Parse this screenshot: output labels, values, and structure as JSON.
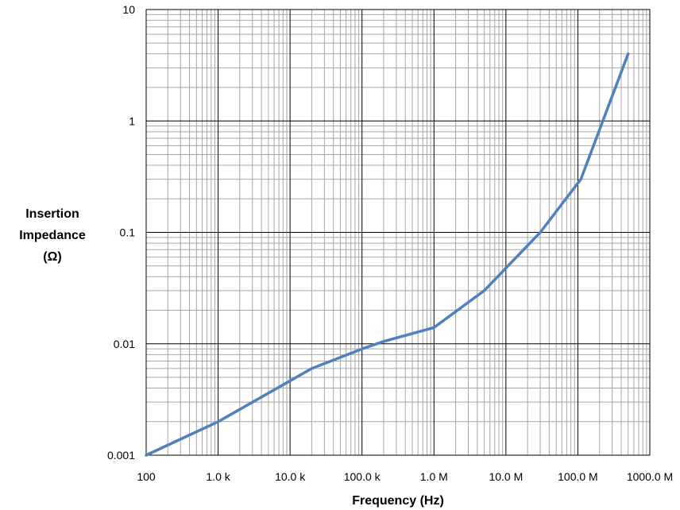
{
  "chart_data": {
    "type": "line",
    "title": "",
    "xlabel": "Frequency (Hz)",
    "ylabel_lines": [
      "Insertion",
      "Impedance",
      "(Ω)"
    ],
    "xscale": "log",
    "yscale": "log",
    "xlim": [
      100,
      1000000000
    ],
    "ylim": [
      0.001,
      10
    ],
    "grid": true,
    "legend": "none",
    "x_ticks": [
      {
        "value": 100,
        "label": "100"
      },
      {
        "value": 1000,
        "label": "1.0 k"
      },
      {
        "value": 10000,
        "label": "10.0 k"
      },
      {
        "value": 100000,
        "label": "100.0 k"
      },
      {
        "value": 1000000,
        "label": "1.0 M"
      },
      {
        "value": 10000000,
        "label": "10.0 M"
      },
      {
        "value": 100000000,
        "label": "100.0 M"
      },
      {
        "value": 1000000000,
        "label": "1000.0 M"
      }
    ],
    "y_ticks": [
      {
        "value": 0.001,
        "label": "0.001"
      },
      {
        "value": 0.01,
        "label": "0.01"
      },
      {
        "value": 0.1,
        "label": "0.1"
      },
      {
        "value": 1,
        "label": "1"
      },
      {
        "value": 10,
        "label": "10"
      }
    ],
    "series": [
      {
        "color": "#4f81bd",
        "x": [
          100,
          1000,
          20000,
          100000,
          200000,
          1000000,
          5000000,
          30000000,
          110000000,
          500000000
        ],
        "y": [
          0.001,
          0.002,
          0.006,
          0.009,
          0.0105,
          0.014,
          0.03,
          0.1,
          0.3,
          4
        ]
      }
    ],
    "colors": {
      "grid_major": "#000000",
      "grid_minor": "#a6a6a6",
      "line": "#4f81bd"
    }
  }
}
